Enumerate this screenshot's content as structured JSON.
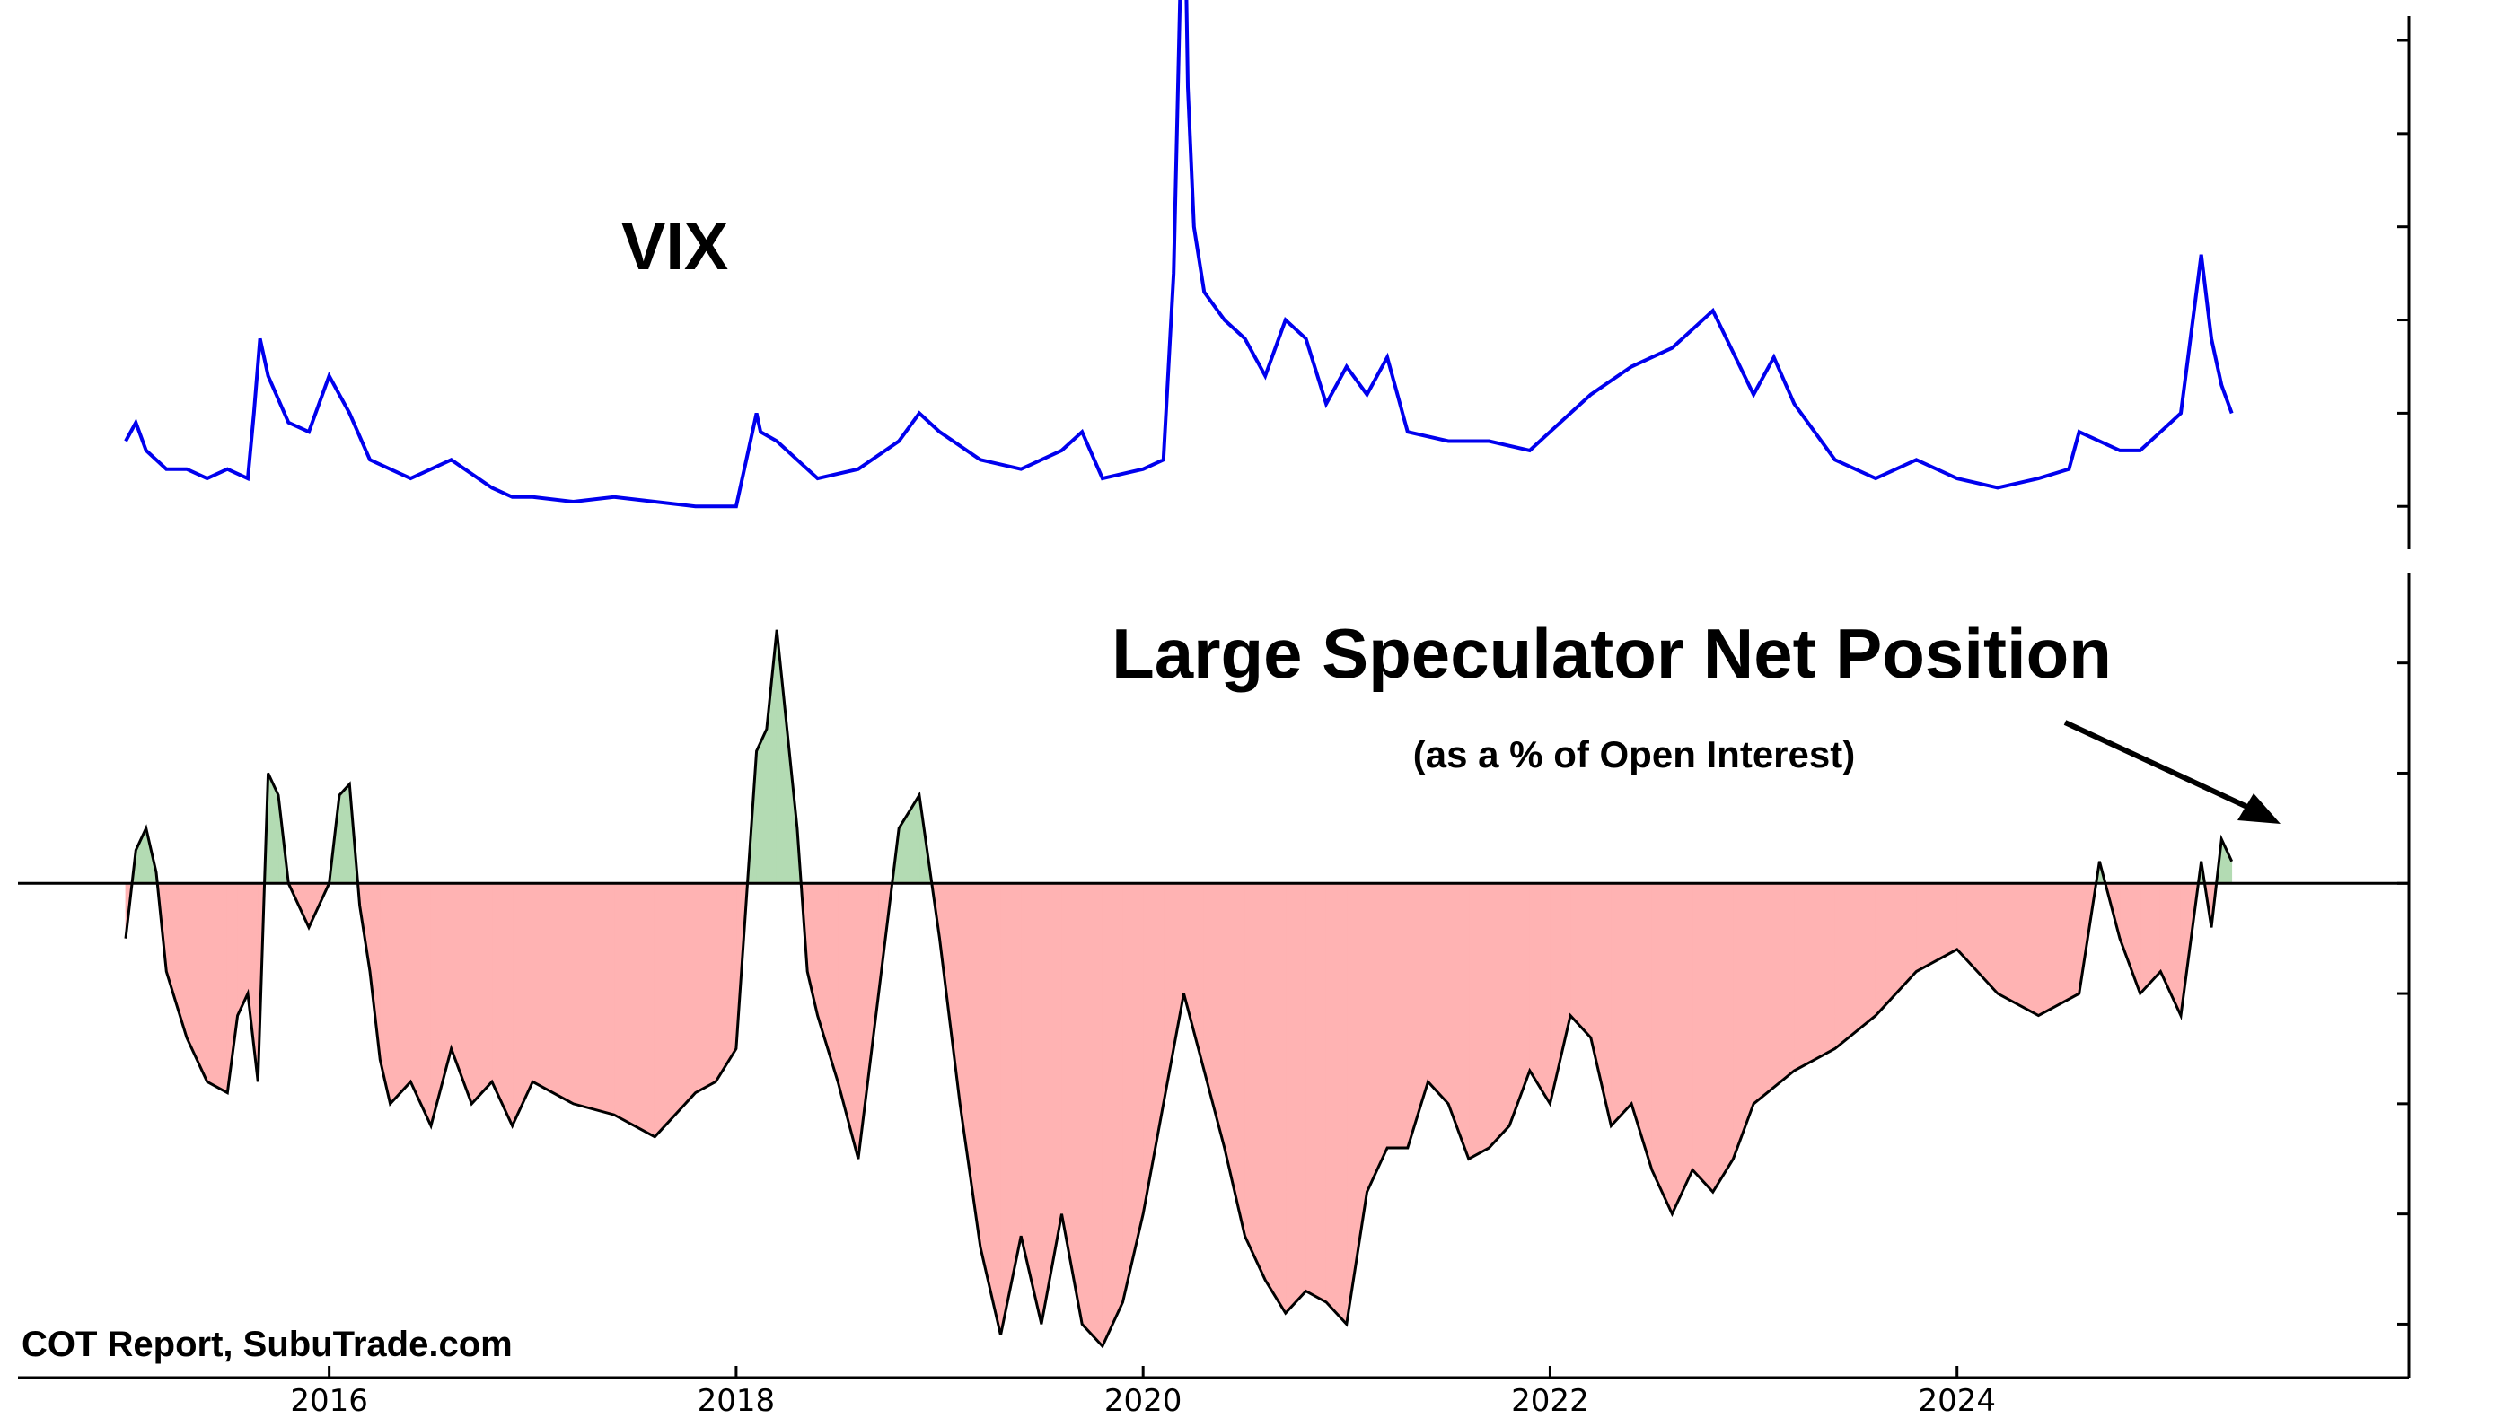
{
  "source_note": "COT Report, SubuTrade.com",
  "chart_data": [
    {
      "type": "line",
      "panel": "top",
      "title": "VIX",
      "xlabel": "",
      "ylabel": "",
      "series_color": "#0000ee",
      "xlim": [
        2015.0,
        2025.7
      ],
      "ylim": [
        8,
        60
      ],
      "x_tick_labels": [
        "2016",
        "2018",
        "2020",
        "2022",
        "2024"
      ],
      "y_ticks": [
        10,
        20,
        30,
        40,
        50,
        60
      ],
      "grid": false,
      "x": [
        2015.0,
        2015.05,
        2015.1,
        2015.2,
        2015.3,
        2015.4,
        2015.5,
        2015.6,
        2015.63,
        2015.66,
        2015.7,
        2015.8,
        2015.9,
        2016.0,
        2016.1,
        2016.2,
        2016.3,
        2016.4,
        2016.5,
        2016.6,
        2016.8,
        2016.9,
        2017.0,
        2017.2,
        2017.4,
        2017.6,
        2017.8,
        2018.0,
        2018.1,
        2018.12,
        2018.2,
        2018.3,
        2018.4,
        2018.6,
        2018.8,
        2018.9,
        2019.0,
        2019.2,
        2019.4,
        2019.6,
        2019.7,
        2019.8,
        2020.0,
        2020.1,
        2020.15,
        2020.2,
        2020.22,
        2020.25,
        2020.3,
        2020.4,
        2020.5,
        2020.6,
        2020.7,
        2020.8,
        2020.9,
        2021.0,
        2021.1,
        2021.2,
        2021.3,
        2021.5,
        2021.7,
        2021.9,
        2022.0,
        2022.2,
        2022.4,
        2022.6,
        2022.8,
        2023.0,
        2023.1,
        2023.2,
        2023.4,
        2023.6,
        2023.8,
        2024.0,
        2024.2,
        2024.4,
        2024.55,
        2024.6,
        2024.8,
        2024.9,
        2025.0,
        2025.1,
        2025.2,
        2025.25,
        2025.3,
        2025.35
      ],
      "values": [
        17,
        19,
        16,
        14,
        14,
        13,
        14,
        13,
        20,
        28,
        24,
        19,
        18,
        24,
        20,
        15,
        14,
        13,
        14,
        15,
        12,
        11,
        11,
        10.5,
        11,
        10.5,
        10,
        10,
        20,
        18,
        17,
        15,
        13,
        14,
        17,
        20,
        18,
        15,
        14,
        16,
        18,
        13,
        14,
        15,
        35,
        82,
        55,
        40,
        33,
        30,
        28,
        24,
        30,
        28,
        21,
        25,
        22,
        26,
        18,
        17,
        17,
        16,
        18,
        22,
        25,
        27,
        31,
        22,
        26,
        21,
        15,
        13,
        15,
        13,
        12,
        13,
        14,
        18,
        16,
        16,
        18,
        20,
        37,
        28,
        23,
        20
      ]
    },
    {
      "type": "area",
      "panel": "bottom",
      "title": "Large Speculator Net Position",
      "subtitle": "(as a % of Open Interest)",
      "xlabel": "",
      "ylabel": "",
      "series_color": "#000000",
      "fill_positive": "#b3dbb3",
      "fill_negative": "#ffb3b3",
      "xlim": [
        2015.0,
        2025.7
      ],
      "ylim": [
        -42,
        26
      ],
      "zero_line": 0,
      "x_tick_labels": [
        "2016",
        "2018",
        "2020",
        "2022",
        "2024"
      ],
      "y_ticks": [
        -40,
        -30,
        -20,
        -10,
        0,
        10,
        20
      ],
      "grid": false,
      "annotation": {
        "text": "Large Speculator Net Position",
        "arrow_to": [
          2025.3,
          4
        ]
      },
      "x": [
        2015.0,
        2015.05,
        2015.1,
        2015.15,
        2015.2,
        2015.3,
        2015.4,
        2015.5,
        2015.55,
        2015.6,
        2015.65,
        2015.7,
        2015.75,
        2015.8,
        2015.9,
        2016.0,
        2016.05,
        2016.1,
        2016.15,
        2016.2,
        2016.25,
        2016.3,
        2016.4,
        2016.5,
        2016.6,
        2016.7,
        2016.8,
        2016.9,
        2017.0,
        2017.2,
        2017.4,
        2017.6,
        2017.8,
        2017.9,
        2018.0,
        2018.1,
        2018.15,
        2018.2,
        2018.3,
        2018.35,
        2018.4,
        2018.5,
        2018.6,
        2018.7,
        2018.8,
        2018.9,
        2019.0,
        2019.1,
        2019.2,
        2019.3,
        2019.4,
        2019.5,
        2019.6,
        2019.7,
        2019.8,
        2019.9,
        2020.0,
        2020.1,
        2020.2,
        2020.3,
        2020.4,
        2020.5,
        2020.6,
        2020.7,
        2020.8,
        2020.9,
        2021.0,
        2021.1,
        2021.2,
        2021.3,
        2021.4,
        2021.5,
        2021.6,
        2021.7,
        2021.8,
        2021.9,
        2022.0,
        2022.1,
        2022.2,
        2022.3,
        2022.4,
        2022.5,
        2022.6,
        2022.7,
        2022.8,
        2022.9,
        2023.0,
        2023.2,
        2023.4,
        2023.6,
        2023.8,
        2024.0,
        2024.2,
        2024.4,
        2024.6,
        2024.7,
        2024.8,
        2024.9,
        2025.0,
        2025.1,
        2025.2,
        2025.25,
        2025.3,
        2025.35
      ],
      "values": [
        -5,
        3,
        5,
        1,
        -8,
        -14,
        -18,
        -19,
        -12,
        -10,
        -18,
        10,
        8,
        0,
        -4,
        0,
        8,
        9,
        -2,
        -8,
        -16,
        -20,
        -18,
        -22,
        -15,
        -20,
        -18,
        -22,
        -18,
        -20,
        -21,
        -23,
        -19,
        -18,
        -15,
        12,
        14,
        23,
        5,
        -8,
        -12,
        -18,
        -25,
        -10,
        5,
        8,
        -5,
        -20,
        -33,
        -41,
        -32,
        -40,
        -30,
        -40,
        -42,
        -38,
        -30,
        -20,
        -10,
        -17,
        -24,
        -32,
        -36,
        -39,
        -37,
        -38,
        -40,
        -28,
        -24,
        -24,
        -18,
        -20,
        -25,
        -24,
        -22,
        -17,
        -20,
        -12,
        -14,
        -22,
        -20,
        -26,
        -30,
        -26,
        -28,
        -25,
        -20,
        -17,
        -15,
        -12,
        -8,
        -6,
        -10,
        -12,
        -10,
        2,
        -5,
        -10,
        -8,
        -12,
        2,
        -4,
        4,
        2
      ]
    }
  ]
}
